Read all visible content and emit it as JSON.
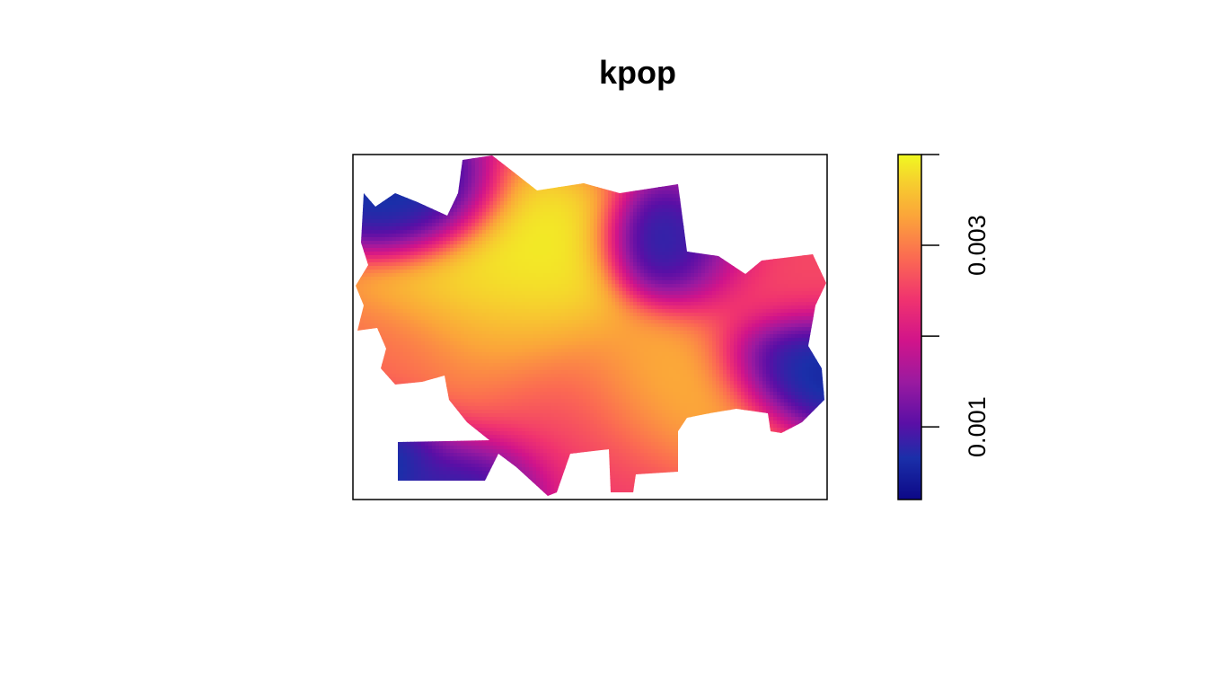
{
  "chart_data": {
    "type": "heatmap",
    "title": "kpop",
    "xlabel": "",
    "ylabel": "",
    "colormap": "plasma",
    "palette": [
      "#0D0887",
      "#1A2FA9",
      "#5A0FA6",
      "#9A1AA0",
      "#D1148A",
      "#F0336F",
      "#FB6A52",
      "#FBA43A",
      "#F6CF2E",
      "#F0F921"
    ],
    "zlim": [
      0.0002,
      0.004
    ],
    "colorbar": {
      "ticks": [
        0.001,
        0.002,
        0.003,
        0.004
      ],
      "tick_labels": [
        "0.001",
        "",
        "0.003",
        ""
      ]
    },
    "hotspots": [
      {
        "x": 0.33,
        "y": 0.36,
        "value": 0.004,
        "spread": 0.13
      },
      {
        "x": 0.25,
        "y": 0.55,
        "value": 0.0032,
        "spread": 0.14
      },
      {
        "x": 0.67,
        "y": 0.67,
        "value": 0.0034,
        "spread": 0.12
      },
      {
        "x": 0.42,
        "y": 0.8,
        "value": 0.0024,
        "spread": 0.16
      },
      {
        "x": 0.86,
        "y": 0.35,
        "value": 0.0025,
        "spread": 0.12
      },
      {
        "x": 0.1,
        "y": 0.6,
        "value": 0.0026,
        "spread": 0.09
      }
    ],
    "coldspots": [
      {
        "x": 0.69,
        "y": 0.29,
        "value": 0.0003
      },
      {
        "x": 0.27,
        "y": 0.95,
        "value": 0.0003
      },
      {
        "x": 0.07,
        "y": 0.85,
        "value": 0.0003
      },
      {
        "x": 0.92,
        "y": 0.6,
        "value": 0.0003
      },
      {
        "x": 0.14,
        "y": 0.16,
        "value": 0.0004
      }
    ]
  }
}
